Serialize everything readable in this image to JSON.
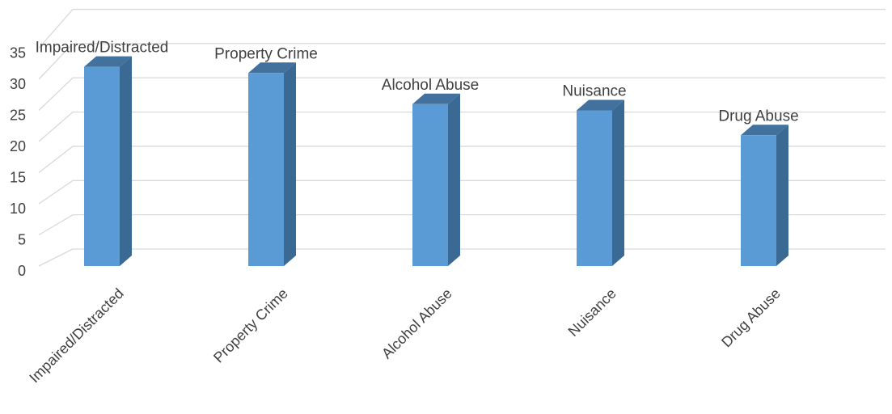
{
  "chart_data": {
    "type": "bar",
    "categories": [
      "Impaired/Distracted",
      "Property Crime",
      "Alcohol Abuse",
      "Nuisance",
      "Drug Abuse"
    ],
    "values": [
      32,
      31,
      26,
      25,
      21
    ],
    "data_labels": [
      "Impaired/Distracted",
      "Property Crime",
      "Alcohol Abuse",
      "Nuisance",
      "Drug Abuse"
    ],
    "y_ticks": [
      "0",
      "5",
      "10",
      "15",
      "20",
      "25",
      "30",
      "35"
    ],
    "ylim": [
      0,
      35
    ],
    "grid": true,
    "legend": "none",
    "style": "3d-column",
    "colors": {
      "bar_front": "#5b9bd5",
      "bar_side": "#3a6a94",
      "bar_top": "#41719c",
      "grid": "#d9d9d9",
      "text": "#404040"
    }
  }
}
